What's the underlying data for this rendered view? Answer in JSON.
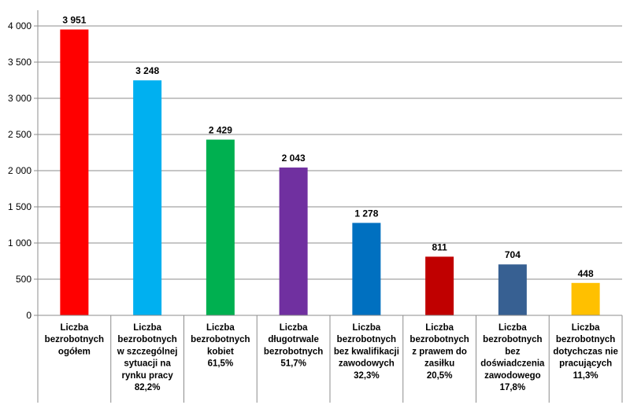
{
  "chart_data": {
    "type": "bar",
    "categories": [
      [
        "Liczba",
        "bezrobotnych",
        "ogółem"
      ],
      [
        "Liczba",
        "bezrobotnych",
        "w szczególnej",
        "sytuacji na",
        "rynku pracy",
        "82,2%"
      ],
      [
        "Liczba",
        "bezrobotnych",
        "kobiet",
        "61,5%"
      ],
      [
        "Liczba",
        "długotrwale",
        "bezrobotnych",
        "51,7%"
      ],
      [
        "Liczba",
        "bezrobotnych",
        "bez kwalifikacji",
        "zawodowych",
        "32,3%"
      ],
      [
        "Liczba",
        "bezrobotnych",
        "z prawem do",
        "zasiłku",
        "20,5%"
      ],
      [
        "Liczba",
        "bezrobotnych",
        "bez",
        "doświadczenia",
        "zawodowego",
        "17,8%"
      ],
      [
        "Liczba",
        "bezrobotnych",
        "dotychczas nie",
        "pracujących",
        "11,3%"
      ]
    ],
    "values": [
      3951,
      3248,
      2429,
      2043,
      1278,
      811,
      704,
      448
    ],
    "value_labels": [
      "3 951",
      "3 248",
      "2 429",
      "2 043",
      "1 278",
      "811",
      "704",
      "448"
    ],
    "colors": [
      "#ff0000",
      "#00b0f0",
      "#00b050",
      "#7030a0",
      "#0070c0",
      "#c00000",
      "#376092",
      "#ffc000"
    ],
    "yticks": [
      0,
      500,
      1000,
      1500,
      2000,
      2500,
      3000,
      3500,
      4000
    ],
    "ytick_labels": [
      "0",
      "500",
      "1 000",
      "1 500",
      "2 000",
      "2 500",
      "3 000",
      "3 500",
      "4 000"
    ],
    "ylim": [
      0,
      4000
    ],
    "grid": true,
    "legend": false
  }
}
